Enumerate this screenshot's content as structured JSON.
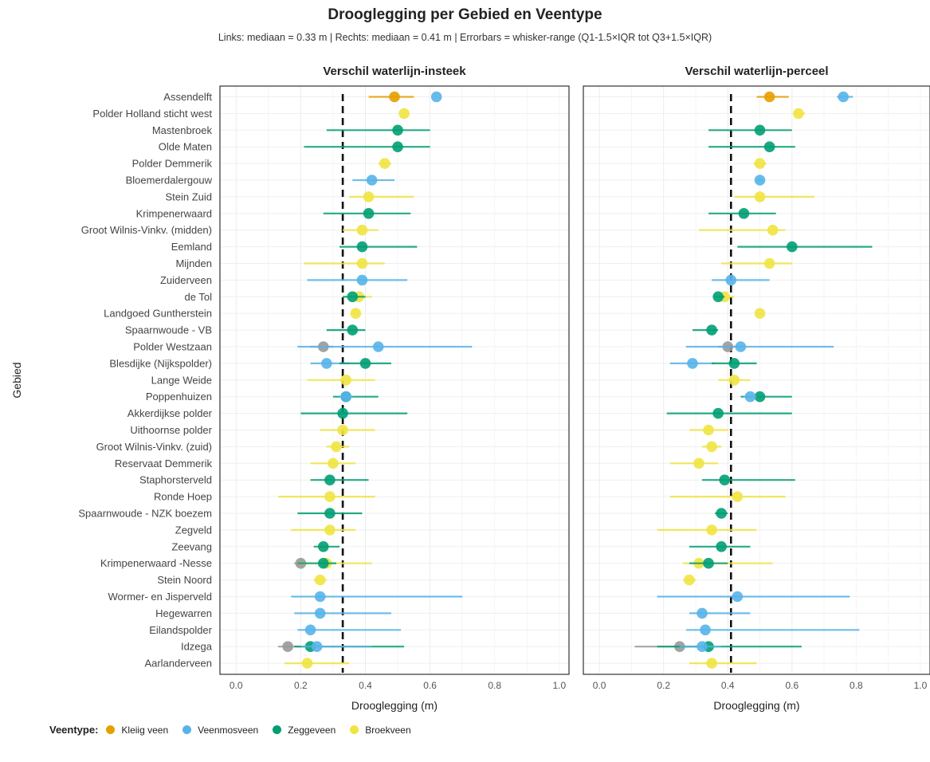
{
  "chart_data": {
    "type": "scatter",
    "title": "Drooglegging per Gebied en Veentype",
    "subtitle": "Links: mediaan = 0.33 m | Rechts: mediaan = 0.41 m | Errorbars = whisker-range (Q1-1.5×IQR tot Q3+1.5×IQR)",
    "ylabel": "Gebied",
    "legend_title": "Veentype:",
    "legend_position": "bottom-left",
    "legend": [
      {
        "name": "Kleiig veen",
        "color": "#E69F00"
      },
      {
        "name": "Veenmosveen",
        "color": "#56B4E9"
      },
      {
        "name": "Zeggeveen",
        "color": "#009E73"
      },
      {
        "name": "Broekveen",
        "color": "#F0E442"
      }
    ],
    "colors": {
      "Kleiig veen": "#E69F00",
      "Veenmosveen": "#56B4E9",
      "Zeggeveen": "#009E73",
      "Broekveen": "#F0E442",
      "Onbekend": "#999999"
    },
    "categories": [
      "Assendelft",
      "Polder Holland sticht west",
      "Mastenbroek",
      "Olde Maten",
      "Polder Demmerik",
      "Bloemerdalergouw",
      "Stein Zuid",
      "Krimpenerwaard",
      "Groot Wilnis-Vinkv. (midden)",
      "Eemland",
      "Mijnden",
      "Zuiderveen",
      "de Tol",
      "Landgoed Guntherstein",
      "Spaarnwoude - VB",
      "Polder Westzaan",
      "Blesdijke (Nijkspolder)",
      "Lange Weide",
      "Poppenhuizen",
      "Akkerdijkse polder",
      "Uithoornse polder",
      "Groot Wilnis-Vinkv. (zuid)",
      "Reservaat Demmerik",
      "Staphorsterveld",
      "Ronde Hoep",
      "Spaarnwoude - NZK boezem",
      "Zegveld",
      "Zeevang",
      "Krimpenerwaard -Nesse",
      "Stein Noord",
      "Wormer- en Jisperveld",
      "Hegewarren",
      "Eilandspolder",
      "Idzega",
      "Aarlanderveen"
    ],
    "panels": [
      {
        "title": "Verschil waterlijn-insteek",
        "xlabel": "Drooglegging (m)",
        "xlim": [
          -0.05,
          1.03
        ],
        "xticks": [
          "0.0",
          "0.2",
          "0.4",
          "0.6",
          "0.8",
          "1.0"
        ],
        "median": 0.33,
        "points": [
          {
            "gebied": "Assendelft",
            "type": "Kleiig veen",
            "x": 0.49,
            "lo": 0.41,
            "hi": 0.55
          },
          {
            "gebied": "Assendelft",
            "type": "Veenmosveen",
            "x": 0.62,
            "lo": 0.62,
            "hi": 0.62
          },
          {
            "gebied": "Polder Holland sticht west",
            "type": "Broekveen",
            "x": 0.52,
            "lo": 0.52,
            "hi": 0.52
          },
          {
            "gebied": "Mastenbroek",
            "type": "Zeggeveen",
            "x": 0.5,
            "lo": 0.28,
            "hi": 0.6
          },
          {
            "gebied": "Olde Maten",
            "type": "Zeggeveen",
            "x": 0.5,
            "lo": 0.21,
            "hi": 0.6
          },
          {
            "gebied": "Polder Demmerik",
            "type": "Broekveen",
            "x": 0.46,
            "lo": 0.44,
            "hi": 0.48
          },
          {
            "gebied": "Bloemerdalergouw",
            "type": "Veenmosveen",
            "x": 0.42,
            "lo": 0.36,
            "hi": 0.49
          },
          {
            "gebied": "Stein Zuid",
            "type": "Broekveen",
            "x": 0.41,
            "lo": 0.35,
            "hi": 0.55
          },
          {
            "gebied": "Krimpenerwaard",
            "type": "Zeggeveen",
            "x": 0.41,
            "lo": 0.27,
            "hi": 0.54
          },
          {
            "gebied": "Groot Wilnis-Vinkv. (midden)",
            "type": "Broekveen",
            "x": 0.39,
            "lo": 0.33,
            "hi": 0.44
          },
          {
            "gebied": "Eemland",
            "type": "Zeggeveen",
            "x": 0.39,
            "lo": 0.32,
            "hi": 0.56
          },
          {
            "gebied": "Mijnden",
            "type": "Broekveen",
            "x": 0.39,
            "lo": 0.21,
            "hi": 0.46
          },
          {
            "gebied": "Zuiderveen",
            "type": "Veenmosveen",
            "x": 0.39,
            "lo": 0.22,
            "hi": 0.53
          },
          {
            "gebied": "de Tol",
            "type": "Broekveen",
            "x": 0.38,
            "lo": 0.33,
            "hi": 0.42
          },
          {
            "gebied": "de Tol",
            "type": "Zeggeveen",
            "x": 0.36,
            "lo": 0.33,
            "hi": 0.4
          },
          {
            "gebied": "Landgoed Guntherstein",
            "type": "Broekveen",
            "x": 0.37,
            "lo": 0.36,
            "hi": 0.38
          },
          {
            "gebied": "Spaarnwoude - VB",
            "type": "Zeggeveen",
            "x": 0.36,
            "lo": 0.28,
            "hi": 0.4
          },
          {
            "gebied": "Polder Westzaan",
            "type": "Onbekend",
            "x": 0.27,
            "lo": 0.23,
            "hi": 0.3
          },
          {
            "gebied": "Polder Westzaan",
            "type": "Veenmosveen",
            "x": 0.44,
            "lo": 0.19,
            "hi": 0.73
          },
          {
            "gebied": "Blesdijke (Nijkspolder)",
            "type": "Veenmosveen",
            "x": 0.28,
            "lo": 0.23,
            "hi": 0.35
          },
          {
            "gebied": "Blesdijke (Nijkspolder)",
            "type": "Zeggeveen",
            "x": 0.4,
            "lo": 0.32,
            "hi": 0.48
          },
          {
            "gebied": "Lange Weide",
            "type": "Broekveen",
            "x": 0.34,
            "lo": 0.22,
            "hi": 0.43
          },
          {
            "gebied": "Poppenhuizen",
            "type": "Zeggeveen",
            "x": 0.34,
            "lo": 0.3,
            "hi": 0.44
          },
          {
            "gebied": "Poppenhuizen",
            "type": "Veenmosveen",
            "x": 0.34,
            "lo": 0.32,
            "hi": 0.36
          },
          {
            "gebied": "Akkerdijkse polder",
            "type": "Zeggeveen",
            "x": 0.33,
            "lo": 0.2,
            "hi": 0.53
          },
          {
            "gebied": "Uithoornse polder",
            "type": "Broekveen",
            "x": 0.33,
            "lo": 0.26,
            "hi": 0.43
          },
          {
            "gebied": "Groot Wilnis-Vinkv. (zuid)",
            "type": "Broekveen",
            "x": 0.31,
            "lo": 0.28,
            "hi": 0.35
          },
          {
            "gebied": "Reservaat Demmerik",
            "type": "Broekveen",
            "x": 0.3,
            "lo": 0.23,
            "hi": 0.37
          },
          {
            "gebied": "Staphorsterveld",
            "type": "Zeggeveen",
            "x": 0.29,
            "lo": 0.23,
            "hi": 0.41
          },
          {
            "gebied": "Ronde Hoep",
            "type": "Broekveen",
            "x": 0.29,
            "lo": 0.13,
            "hi": 0.43
          },
          {
            "gebied": "Spaarnwoude - NZK boezem",
            "type": "Zeggeveen",
            "x": 0.29,
            "lo": 0.19,
            "hi": 0.39
          },
          {
            "gebied": "Zegveld",
            "type": "Broekveen",
            "x": 0.29,
            "lo": 0.17,
            "hi": 0.37
          },
          {
            "gebied": "Zeevang",
            "type": "Zeggeveen",
            "x": 0.27,
            "lo": 0.24,
            "hi": 0.32
          },
          {
            "gebied": "Krimpenerwaard -Nesse",
            "type": "Onbekend",
            "x": 0.2,
            "lo": 0.18,
            "hi": 0.22
          },
          {
            "gebied": "Krimpenerwaard -Nesse",
            "type": "Broekveen",
            "x": 0.28,
            "lo": 0.19,
            "hi": 0.42
          },
          {
            "gebied": "Krimpenerwaard -Nesse",
            "type": "Zeggeveen",
            "x": 0.27,
            "lo": 0.19,
            "hi": 0.31
          },
          {
            "gebied": "Stein Noord",
            "type": "Broekveen",
            "x": 0.26,
            "lo": 0.24,
            "hi": 0.28
          },
          {
            "gebied": "Wormer- en Jisperveld",
            "type": "Veenmosveen",
            "x": 0.26,
            "lo": 0.17,
            "hi": 0.7
          },
          {
            "gebied": "Hegewarren",
            "type": "Veenmosveen",
            "x": 0.26,
            "lo": 0.18,
            "hi": 0.48
          },
          {
            "gebied": "Eilandspolder",
            "type": "Veenmosveen",
            "x": 0.23,
            "lo": 0.19,
            "hi": 0.51
          },
          {
            "gebied": "Idzega",
            "type": "Onbekend",
            "x": 0.16,
            "lo": 0.13,
            "hi": 0.24
          },
          {
            "gebied": "Idzega",
            "type": "Zeggeveen",
            "x": 0.23,
            "lo": 0.18,
            "hi": 0.52
          },
          {
            "gebied": "Idzega",
            "type": "Veenmosveen",
            "x": 0.25,
            "lo": 0.2,
            "hi": 0.42
          },
          {
            "gebied": "Aarlanderveen",
            "type": "Broekveen",
            "x": 0.22,
            "lo": 0.15,
            "hi": 0.35
          }
        ]
      },
      {
        "title": "Verschil waterlijn-perceel",
        "xlabel": "Drooglegging (m)",
        "xlim": [
          -0.05,
          1.03
        ],
        "xticks": [
          "0.0",
          "0.2",
          "0.4",
          "0.6",
          "0.8",
          "1.0"
        ],
        "median": 0.41,
        "points": [
          {
            "gebied": "Assendelft",
            "type": "Kleiig veen",
            "x": 0.53,
            "lo": 0.49,
            "hi": 0.59
          },
          {
            "gebied": "Assendelft",
            "type": "Veenmosveen",
            "x": 0.76,
            "lo": 0.74,
            "hi": 0.79
          },
          {
            "gebied": "Polder Holland sticht west",
            "type": "Broekveen",
            "x": 0.62,
            "lo": 0.61,
            "hi": 0.64
          },
          {
            "gebied": "Mastenbroek",
            "type": "Zeggeveen",
            "x": 0.5,
            "lo": 0.34,
            "hi": 0.6
          },
          {
            "gebied": "Olde Maten",
            "type": "Zeggeveen",
            "x": 0.53,
            "lo": 0.34,
            "hi": 0.61
          },
          {
            "gebied": "Polder Demmerik",
            "type": "Broekveen",
            "x": 0.5,
            "lo": 0.48,
            "hi": 0.52
          },
          {
            "gebied": "Bloemerdalergouw",
            "type": "Veenmosveen",
            "x": 0.5,
            "lo": 0.49,
            "hi": 0.51
          },
          {
            "gebied": "Stein Zuid",
            "type": "Broekveen",
            "x": 0.5,
            "lo": 0.42,
            "hi": 0.67
          },
          {
            "gebied": "Krimpenerwaard",
            "type": "Zeggeveen",
            "x": 0.45,
            "lo": 0.34,
            "hi": 0.55
          },
          {
            "gebied": "Groot Wilnis-Vinkv. (midden)",
            "type": "Broekveen",
            "x": 0.54,
            "lo": 0.31,
            "hi": 0.58
          },
          {
            "gebied": "Eemland",
            "type": "Zeggeveen",
            "x": 0.6,
            "lo": 0.43,
            "hi": 0.85
          },
          {
            "gebied": "Mijnden",
            "type": "Broekveen",
            "x": 0.53,
            "lo": 0.38,
            "hi": 0.6
          },
          {
            "gebied": "Zuiderveen",
            "type": "Veenmosveen",
            "x": 0.41,
            "lo": 0.35,
            "hi": 0.53
          },
          {
            "gebied": "de Tol",
            "type": "Broekveen",
            "x": 0.39,
            "lo": 0.37,
            "hi": 0.42
          },
          {
            "gebied": "de Tol",
            "type": "Zeggeveen",
            "x": 0.37,
            "lo": 0.36,
            "hi": 0.39
          },
          {
            "gebied": "Landgoed Guntherstein",
            "type": "Broekveen",
            "x": 0.5,
            "lo": 0.49,
            "hi": 0.51
          },
          {
            "gebied": "Spaarnwoude - VB",
            "type": "Zeggeveen",
            "x": 0.35,
            "lo": 0.29,
            "hi": 0.37
          },
          {
            "gebied": "Polder Westzaan",
            "type": "Onbekend",
            "x": 0.4,
            "lo": 0.37,
            "hi": 0.44
          },
          {
            "gebied": "Polder Westzaan",
            "type": "Veenmosveen",
            "x": 0.44,
            "lo": 0.27,
            "hi": 0.73
          },
          {
            "gebied": "Blesdijke (Nijkspolder)",
            "type": "Veenmosveen",
            "x": 0.29,
            "lo": 0.22,
            "hi": 0.36
          },
          {
            "gebied": "Blesdijke (Nijkspolder)",
            "type": "Zeggeveen",
            "x": 0.42,
            "lo": 0.35,
            "hi": 0.49
          },
          {
            "gebied": "Lange Weide",
            "type": "Broekveen",
            "x": 0.42,
            "lo": 0.37,
            "hi": 0.47
          },
          {
            "gebied": "Poppenhuizen",
            "type": "Zeggeveen",
            "x": 0.5,
            "lo": 0.44,
            "hi": 0.6
          },
          {
            "gebied": "Poppenhuizen",
            "type": "Veenmosveen",
            "x": 0.47,
            "lo": 0.45,
            "hi": 0.49
          },
          {
            "gebied": "Akkerdijkse polder",
            "type": "Zeggeveen",
            "x": 0.37,
            "lo": 0.21,
            "hi": 0.6
          },
          {
            "gebied": "Uithoornse polder",
            "type": "Broekveen",
            "x": 0.34,
            "lo": 0.28,
            "hi": 0.4
          },
          {
            "gebied": "Groot Wilnis-Vinkv. (zuid)",
            "type": "Broekveen",
            "x": 0.35,
            "lo": 0.32,
            "hi": 0.38
          },
          {
            "gebied": "Reservaat Demmerik",
            "type": "Broekveen",
            "x": 0.31,
            "lo": 0.22,
            "hi": 0.37
          },
          {
            "gebied": "Staphorsterveld",
            "type": "Zeggeveen",
            "x": 0.39,
            "lo": 0.32,
            "hi": 0.61
          },
          {
            "gebied": "Ronde Hoep",
            "type": "Broekveen",
            "x": 0.43,
            "lo": 0.22,
            "hi": 0.58
          },
          {
            "gebied": "Spaarnwoude - NZK boezem",
            "type": "Zeggeveen",
            "x": 0.38,
            "lo": 0.36,
            "hi": 0.4
          },
          {
            "gebied": "Zegveld",
            "type": "Broekveen",
            "x": 0.35,
            "lo": 0.18,
            "hi": 0.49
          },
          {
            "gebied": "Zeevang",
            "type": "Zeggeveen",
            "x": 0.38,
            "lo": 0.28,
            "hi": 0.47
          },
          {
            "gebied": "Krimpenerwaard -Nesse",
            "type": "Broekveen",
            "x": 0.31,
            "lo": 0.26,
            "hi": 0.54
          },
          {
            "gebied": "Krimpenerwaard -Nesse",
            "type": "Zeggeveen",
            "x": 0.34,
            "lo": 0.28,
            "hi": 0.4
          },
          {
            "gebied": "Stein Noord",
            "type": "Broekveen",
            "x": 0.28,
            "lo": 0.26,
            "hi": 0.3
          },
          {
            "gebied": "Wormer- en Jisperveld",
            "type": "Veenmosveen",
            "x": 0.43,
            "lo": 0.18,
            "hi": 0.78
          },
          {
            "gebied": "Hegewarren",
            "type": "Veenmosveen",
            "x": 0.32,
            "lo": 0.28,
            "hi": 0.47
          },
          {
            "gebied": "Eilandspolder",
            "type": "Veenmosveen",
            "x": 0.33,
            "lo": 0.27,
            "hi": 0.81
          },
          {
            "gebied": "Idzega",
            "type": "Onbekend",
            "x": 0.25,
            "lo": 0.11,
            "hi": 0.31
          },
          {
            "gebied": "Idzega",
            "type": "Zeggeveen",
            "x": 0.34,
            "lo": 0.18,
            "hi": 0.63
          },
          {
            "gebied": "Idzega",
            "type": "Veenmosveen",
            "x": 0.32,
            "lo": 0.25,
            "hi": 0.38
          },
          {
            "gebied": "Aarlanderveen",
            "type": "Broekveen",
            "x": 0.35,
            "lo": 0.28,
            "hi": 0.49
          }
        ]
      }
    ]
  }
}
